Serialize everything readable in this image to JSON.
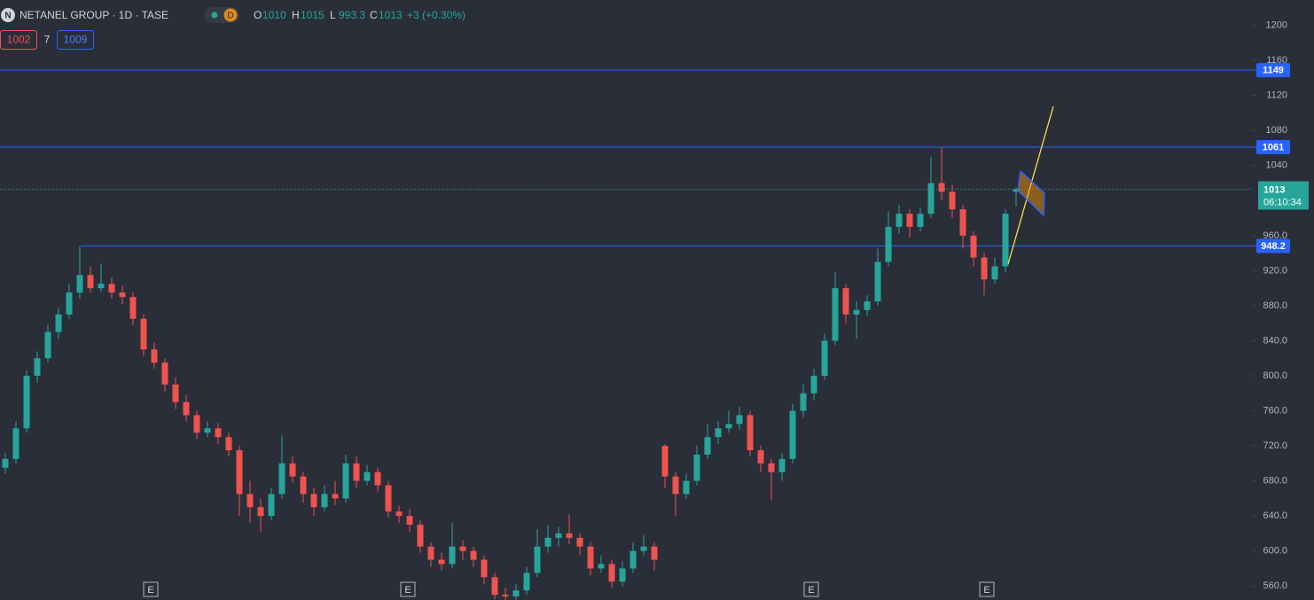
{
  "header": {
    "logo_letter": "N",
    "title": "NETANEL GROUP · 1D · TASE",
    "badge": "D",
    "ohlc_labels": [
      "O",
      "H",
      "L",
      "C"
    ],
    "change": "+3 (+0.30%)"
  },
  "indicator": {
    "left": "1002",
    "middle": "7",
    "right": "1009"
  },
  "chart_data": {
    "type": "candlestick",
    "up_color": "#26a69a",
    "down_color": "#ef5350",
    "ylim": [
      544,
      1229
    ],
    "yticks": [
      {
        "value": 560,
        "label": "560.0"
      },
      {
        "value": 600,
        "label": "600.0"
      },
      {
        "value": 640,
        "label": "640.0"
      },
      {
        "value": 680,
        "label": "680.0"
      },
      {
        "value": 720,
        "label": "720.0"
      },
      {
        "value": 760,
        "label": "760.0"
      },
      {
        "value": 800,
        "label": "800.0"
      },
      {
        "value": 840,
        "label": "840.0"
      },
      {
        "value": 880,
        "label": "880.0"
      },
      {
        "value": 920,
        "label": "920.0"
      },
      {
        "value": 960,
        "label": "960.0"
      },
      1040,
      1080,
      1120,
      1160,
      1200
    ],
    "ohlc": [
      [
        695,
        712,
        688,
        705
      ],
      [
        705,
        748,
        700,
        740
      ],
      [
        740,
        806,
        735,
        800
      ],
      [
        800,
        828,
        792,
        820
      ],
      [
        820,
        858,
        815,
        850
      ],
      [
        850,
        878,
        842,
        870
      ],
      [
        870,
        905,
        865,
        895
      ],
      [
        895,
        948.2,
        888,
        915
      ],
      [
        915,
        925,
        895,
        900
      ],
      [
        900,
        928,
        896,
        905
      ],
      [
        905,
        912,
        888,
        895
      ],
      [
        895,
        903,
        882,
        890
      ],
      [
        890,
        895,
        858,
        865
      ],
      [
        865,
        870,
        822,
        830
      ],
      [
        830,
        838,
        808,
        815
      ],
      [
        815,
        820,
        782,
        790
      ],
      [
        790,
        798,
        762,
        770
      ],
      [
        770,
        778,
        748,
        755
      ],
      [
        755,
        760,
        728,
        735
      ],
      [
        735,
        748,
        730,
        740
      ],
      [
        740,
        746,
        722,
        730
      ],
      [
        730,
        735,
        708,
        715
      ],
      [
        715,
        720,
        640,
        665
      ],
      [
        665,
        680,
        632,
        650
      ],
      [
        650,
        660,
        622,
        640
      ],
      [
        640,
        672,
        635,
        665
      ],
      [
        665,
        732,
        660,
        700
      ],
      [
        700,
        708,
        678,
        685
      ],
      [
        685,
        690,
        655,
        665
      ],
      [
        665,
        672,
        640,
        650
      ],
      [
        650,
        675,
        645,
        665
      ],
      [
        665,
        680,
        652,
        660
      ],
      [
        660,
        710,
        655,
        700
      ],
      [
        700,
        708,
        672,
        680
      ],
      [
        680,
        698,
        675,
        690
      ],
      [
        690,
        695,
        668,
        675
      ],
      [
        675,
        680,
        638,
        645
      ],
      [
        645,
        652,
        632,
        640
      ],
      [
        640,
        648,
        622,
        630
      ],
      [
        630,
        635,
        598,
        605
      ],
      [
        605,
        610,
        582,
        590
      ],
      [
        590,
        598,
        578,
        585
      ],
      [
        585,
        632,
        580,
        605
      ],
      [
        605,
        612,
        590,
        600
      ],
      [
        600,
        605,
        582,
        590
      ],
      [
        590,
        595,
        562,
        570
      ],
      [
        570,
        575,
        545,
        550
      ],
      [
        550,
        558,
        540,
        548
      ],
      [
        548,
        562,
        542,
        555
      ],
      [
        555,
        582,
        550,
        575
      ],
      [
        575,
        625,
        570,
        605
      ],
      [
        605,
        630,
        598,
        615
      ],
      [
        615,
        628,
        605,
        620
      ],
      [
        620,
        642,
        608,
        615
      ],
      [
        615,
        620,
        595,
        605
      ],
      [
        605,
        610,
        572,
        580
      ],
      [
        580,
        595,
        575,
        585
      ],
      [
        585,
        590,
        558,
        565
      ],
      [
        565,
        588,
        560,
        580
      ],
      [
        580,
        610,
        575,
        600
      ],
      [
        600,
        618,
        595,
        605
      ],
      [
        605,
        610,
        578,
        590
      ],
      [
        720,
        722,
        672,
        685
      ],
      [
        685,
        690,
        640,
        665
      ],
      [
        665,
        688,
        660,
        680
      ],
      [
        680,
        720,
        675,
        710
      ],
      [
        710,
        745,
        705,
        730
      ],
      [
        730,
        748,
        722,
        740
      ],
      [
        740,
        760,
        735,
        745
      ],
      [
        745,
        765,
        738,
        755
      ],
      [
        755,
        760,
        708,
        715
      ],
      [
        715,
        720,
        690,
        700
      ],
      [
        700,
        705,
        658,
        690
      ],
      [
        690,
        712,
        680,
        705
      ],
      [
        705,
        768,
        700,
        760
      ],
      [
        760,
        790,
        752,
        780
      ],
      [
        780,
        808,
        772,
        800
      ],
      [
        800,
        848,
        795,
        840
      ],
      [
        840,
        918,
        835,
        900
      ],
      [
        900,
        905,
        860,
        870
      ],
      [
        870,
        885,
        842,
        875
      ],
      [
        875,
        892,
        868,
        885
      ],
      [
        885,
        945,
        880,
        930
      ],
      [
        930,
        988,
        925,
        970
      ],
      [
        970,
        995,
        962,
        985
      ],
      [
        985,
        990,
        958,
        970
      ],
      [
        970,
        992,
        965,
        985
      ],
      [
        985,
        1050,
        980,
        1020
      ],
      [
        1020,
        1061,
        1000,
        1010
      ],
      [
        1010,
        1018,
        980,
        990
      ],
      [
        990,
        995,
        945,
        960
      ],
      [
        960,
        965,
        925,
        935
      ],
      [
        935,
        940,
        892,
        910
      ],
      [
        910,
        935,
        905,
        925
      ],
      [
        925,
        990,
        918,
        985
      ],
      [
        1010,
        1015,
        993.3,
        1013
      ]
    ],
    "hlines": [
      1149,
      1061,
      948.2
    ],
    "hline_color": "#2962ff",
    "countdown": "06:10:34",
    "event_labels": [
      "E",
      "E",
      "E",
      "E"
    ]
  }
}
